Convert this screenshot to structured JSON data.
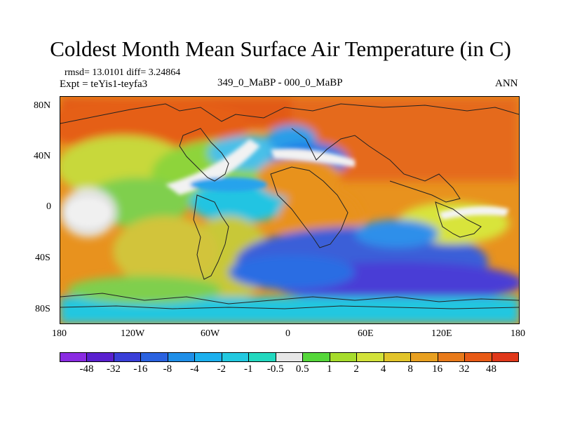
{
  "title": "Coldest Month Mean Surface Air Temperature (in C)",
  "stats": "rmsd= 13.0101 diff= 3.24864",
  "expt": "Expt = teYis1-teyfa3",
  "period": "349_0_MaBP - 000_0_MaBP",
  "season": "ANN",
  "y_ticks": [
    "80N",
    "40N",
    "0",
    "40S",
    "80S"
  ],
  "x_ticks": [
    "180",
    "120W",
    "60W",
    "0",
    "60E",
    "120E",
    "180"
  ],
  "colorbar": {
    "labels": [
      "-48",
      "-32",
      "-16",
      "-8",
      "-4",
      "-2",
      "-1",
      "-0.5",
      "0.5",
      "1",
      "2",
      "4",
      "8",
      "16",
      "32",
      "48"
    ],
    "colors": [
      "#8a2be2",
      "#5a20cf",
      "#3a3fd8",
      "#2a62e0",
      "#1f8fe8",
      "#1cb0ee",
      "#22c9e0",
      "#22d8bf",
      "#e6e6e6",
      "#55d73a",
      "#a6dc2c",
      "#d2e23a",
      "#e2c42a",
      "#e8a020",
      "#e87a1a",
      "#e85a16",
      "#e0381a"
    ]
  }
}
